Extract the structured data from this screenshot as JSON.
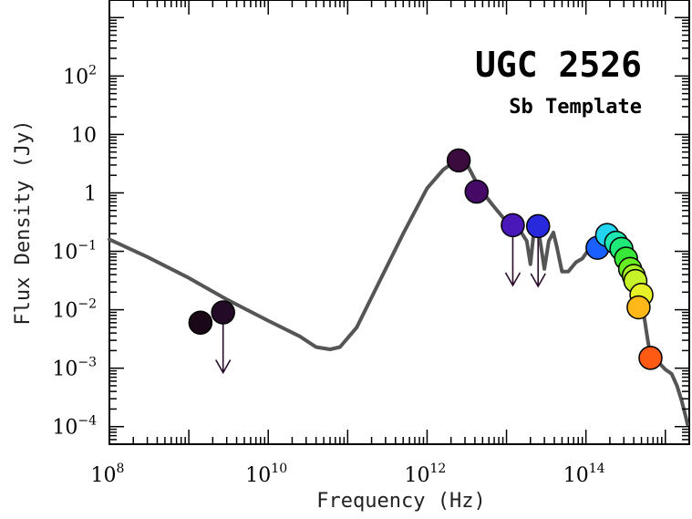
{
  "chart_data": {
    "type": "scatter",
    "title": "UGC 2526",
    "subtitle": "Sb Template",
    "xlabel": "Frequency (Hz)",
    "ylabel": "Flux Density (Jy)",
    "x_scale": "log",
    "y_scale": "log",
    "xlim": [
      100000000.0,
      2000000000000000.0
    ],
    "ylim": [
      5e-05,
      2000
    ],
    "grid": false,
    "x_ticks": [
      {
        "base": "10",
        "exp": "8",
        "value": 100000000.0
      },
      {
        "base": "10",
        "exp": "10",
        "value": 10000000000.0
      },
      {
        "base": "10",
        "exp": "12",
        "value": 1000000000000.0
      },
      {
        "base": "10",
        "exp": "14",
        "value": 100000000000000.0
      }
    ],
    "y_ticks": [
      {
        "base": "10",
        "exp": "2",
        "value": 100
      },
      {
        "base": "10",
        "exp": "",
        "value": 10
      },
      {
        "base": "1",
        "exp": "",
        "value": 1
      },
      {
        "base": "10",
        "exp": "−1",
        "value": 0.1
      },
      {
        "base": "10",
        "exp": "−2",
        "value": 0.01
      },
      {
        "base": "10",
        "exp": "−3",
        "value": 0.001
      },
      {
        "base": "10",
        "exp": "−4",
        "value": 0.0001
      }
    ],
    "series": [
      {
        "kind": "measurements",
        "points": [
          {
            "x": 1400000000.0,
            "y": 0.006,
            "color": "#1a0818",
            "upper_limit": false
          },
          {
            "x": 2700000000.0,
            "y": 0.009,
            "color": "#230a26",
            "upper_limit": true
          },
          {
            "x": 2500000000000.0,
            "y": 3.6,
            "color": "#3a0b3c",
            "upper_limit": false
          },
          {
            "x": 4200000000000.0,
            "y": 1.05,
            "color": "#450a66",
            "upper_limit": false
          },
          {
            "x": 12000000000000.0,
            "y": 0.28,
            "color": "#4a18b8",
            "upper_limit": true
          },
          {
            "x": 25000000000000.0,
            "y": 0.27,
            "color": "#2828dd",
            "upper_limit": true
          },
          {
            "x": 140000000000000.0,
            "y": 0.115,
            "color": "#1a60ff",
            "upper_limit": false
          },
          {
            "x": 185000000000000.0,
            "y": 0.19,
            "color": "#22d4f0",
            "upper_limit": false
          },
          {
            "x": 240000000000000.0,
            "y": 0.14,
            "color": "#1ee8b0",
            "upper_limit": false
          },
          {
            "x": 280000000000000.0,
            "y": 0.11,
            "color": "#1ee878",
            "upper_limit": false
          },
          {
            "x": 320000000000000.0,
            "y": 0.075,
            "color": "#38e838",
            "upper_limit": false
          },
          {
            "x": 360000000000000.0,
            "y": 0.05,
            "color": "#66ee22",
            "upper_limit": false
          },
          {
            "x": 400000000000000.0,
            "y": 0.038,
            "color": "#a6f022",
            "upper_limit": false
          },
          {
            "x": 420000000000000.0,
            "y": 0.031,
            "color": "#c6f22a",
            "upper_limit": false
          },
          {
            "x": 500000000000000.0,
            "y": 0.018,
            "color": "#e8f028",
            "upper_limit": false
          },
          {
            "x": 460000000000000.0,
            "y": 0.011,
            "color": "#ffb818",
            "upper_limit": false
          },
          {
            "x": 650000000000000.0,
            "y": 0.0015,
            "color": "#ff5a14",
            "upper_limit": false
          }
        ]
      },
      {
        "kind": "template",
        "color": "#555555",
        "points": [
          [
            100000000.0,
            0.16
          ],
          [
            300000000.0,
            0.08
          ],
          [
            1000000000.0,
            0.035
          ],
          [
            3000000000.0,
            0.015
          ],
          [
            10000000000.0,
            0.0065
          ],
          [
            25000000000.0,
            0.0035
          ],
          [
            40000000000.0,
            0.0023
          ],
          [
            60000000000.0,
            0.0021
          ],
          [
            80000000000.0,
            0.0023
          ],
          [
            130000000000.0,
            0.005
          ],
          [
            250000000000.0,
            0.03
          ],
          [
            500000000000.0,
            0.2
          ],
          [
            1000000000000.0,
            1.2
          ],
          [
            1600000000000.0,
            2.5
          ],
          [
            2200000000000.0,
            3.4
          ],
          [
            2700000000000.0,
            3.6
          ],
          [
            3300000000000.0,
            2.8
          ],
          [
            4500000000000.0,
            1.25
          ],
          [
            6500000000000.0,
            0.65
          ],
          [
            9000000000000.0,
            0.38
          ],
          [
            12000000000000.0,
            0.28
          ],
          [
            15000000000000.0,
            0.22
          ],
          [
            18000000000000.0,
            0.15
          ],
          [
            20000000000000.0,
            0.06
          ],
          [
            22000000000000.0,
            0.21
          ],
          [
            26000000000000.0,
            0.18
          ],
          [
            30000000000000.0,
            0.05
          ],
          [
            34000000000000.0,
            0.15
          ],
          [
            39000000000000.0,
            0.21
          ],
          [
            43000000000000.0,
            0.12
          ],
          [
            50000000000000.0,
            0.045
          ],
          [
            60000000000000.0,
            0.045
          ],
          [
            75000000000000.0,
            0.065
          ],
          [
            90000000000000.0,
            0.075
          ],
          [
            110000000000000.0,
            0.11
          ],
          [
            130000000000000.0,
            0.15
          ],
          [
            150000000000000.0,
            0.16
          ],
          [
            180000000000000.0,
            0.15
          ],
          [
            220000000000000.0,
            0.13
          ],
          [
            270000000000000.0,
            0.1
          ],
          [
            320000000000000.0,
            0.065
          ],
          [
            380000000000000.0,
            0.042
          ],
          [
            440000000000000.0,
            0.025
          ],
          [
            500000000000000.0,
            0.013
          ],
          [
            550000000000000.0,
            0.0065
          ],
          [
            600000000000000.0,
            0.003
          ],
          [
            650000000000000.0,
            0.0016
          ],
          [
            700000000000000.0,
            0.0011
          ],
          [
            750000000000000.0,
            0.0013
          ],
          [
            850000000000000.0,
            0.0012
          ],
          [
            1000000000000000.0,
            0.00095
          ],
          [
            1200000000000000.0,
            0.0008
          ],
          [
            1400000000000000.0,
            0.0005
          ],
          [
            1600000000000000.0,
            0.00028
          ],
          [
            1800000000000000.0,
            0.00015
          ],
          [
            1900000000000000.0,
            0.00011
          ]
        ]
      }
    ]
  }
}
